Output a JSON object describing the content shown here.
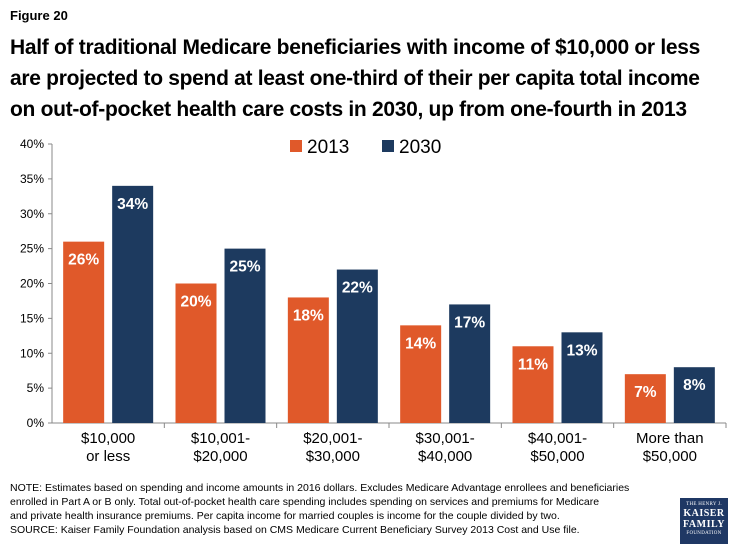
{
  "figure_label": "Figure 20",
  "title": "Half of traditional Medicare beneficiaries with income of $10,000 or less are projected to spend at least one-third of their per capita total income on out-of-pocket health care costs in 2030, up from one-fourth in 2013",
  "note_lines": [
    "NOTE: Estimates based on spending and income amounts in 2016 dollars. Excludes Medicare Advantage enrollees and beneficiaries",
    "enrolled in Part A or B only. Total out-of-pocket health care spending includes spending on services and premiums for Medicare",
    "and private health insurance premiums. Per capita income for married couples is income for the couple divided by two.",
    "SOURCE: Kaiser Family Foundation analysis based on CMS Medicare Current Beneficiary Survey 2013 Cost and Use file."
  ],
  "logo": {
    "line1": "THE HENRY J.",
    "line2": "KAISER",
    "line3": "FAMILY",
    "line4": "FOUNDATION"
  },
  "chart_data": {
    "type": "bar",
    "categories": [
      [
        "$10,000",
        "or less"
      ],
      [
        "$10,001-",
        "$20,000"
      ],
      [
        "$20,001-",
        "$30,000"
      ],
      [
        "$30,001-",
        "$40,000"
      ],
      [
        "$40,001-",
        "$50,000"
      ],
      [
        "More than",
        "$50,000"
      ]
    ],
    "series": [
      {
        "name": "2013",
        "color": "#e0592a",
        "values": [
          26,
          20,
          18,
          14,
          11,
          7
        ],
        "labels": [
          "26%",
          "20%",
          "18%",
          "14%",
          "11%",
          "7%"
        ]
      },
      {
        "name": "2030",
        "color": "#1d3a5f",
        "values": [
          34,
          25,
          22,
          17,
          13,
          8
        ],
        "labels": [
          "34%",
          "25%",
          "22%",
          "17%",
          "13%",
          "8%"
        ]
      }
    ],
    "ylim": [
      0,
      40
    ],
    "yticks": [
      "0%",
      "5%",
      "10%",
      "15%",
      "20%",
      "25%",
      "30%",
      "35%",
      "40%"
    ],
    "legend_position": "top-center",
    "grid": false
  }
}
